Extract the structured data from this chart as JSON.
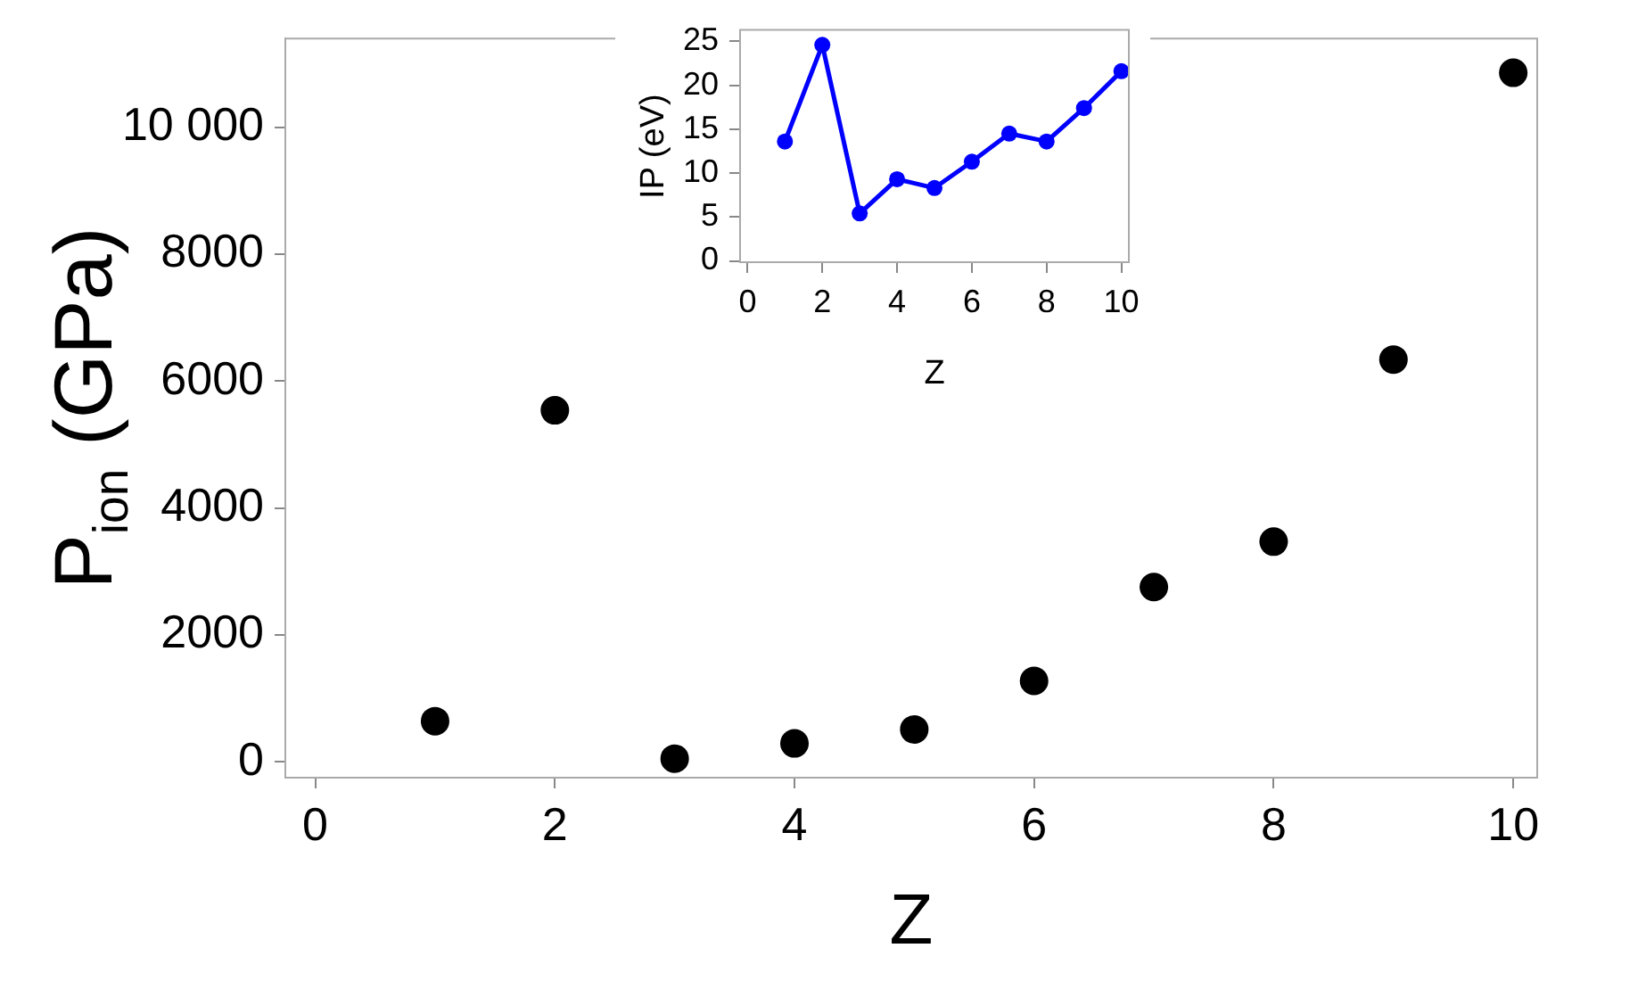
{
  "chart_data": [
    {
      "type": "scatter",
      "xlabel": "Z",
      "ylabel": "P$_{ion}$ (GPa)",
      "x": [
        1,
        2,
        3,
        4,
        5,
        6,
        7,
        8,
        9,
        10
      ],
      "values": [
        640,
        5540,
        50,
        290,
        510,
        1275,
        2755,
        3470,
        6340,
        10860
      ],
      "color": "#000000",
      "marker": "circle",
      "xlim": [
        -0.25,
        10.2
      ],
      "ylim": [
        -250,
        11400
      ],
      "xticks": [
        0,
        2,
        4,
        6,
        8,
        10
      ],
      "yticks": [
        0,
        2000,
        4000,
        6000,
        8000,
        {
          "value": 10000,
          "label": "10 000"
        }
      ]
    },
    {
      "type": "line",
      "xlabel": "Z",
      "ylabel": "IP (eV)",
      "x": [
        1,
        2,
        3,
        4,
        5,
        6,
        7,
        8,
        9,
        10
      ],
      "values": [
        13.6,
        24.6,
        5.4,
        9.3,
        8.3,
        11.3,
        14.5,
        13.6,
        17.4,
        21.6
      ],
      "color": "#0000ff",
      "marker": "circle",
      "xlim": [
        -0.2,
        10.2
      ],
      "ylim": [
        -0.15,
        26.3
      ],
      "xticks": [
        0,
        2,
        4,
        6,
        8,
        10
      ],
      "yticks": [
        0,
        5,
        10,
        15,
        20,
        25
      ]
    }
  ]
}
